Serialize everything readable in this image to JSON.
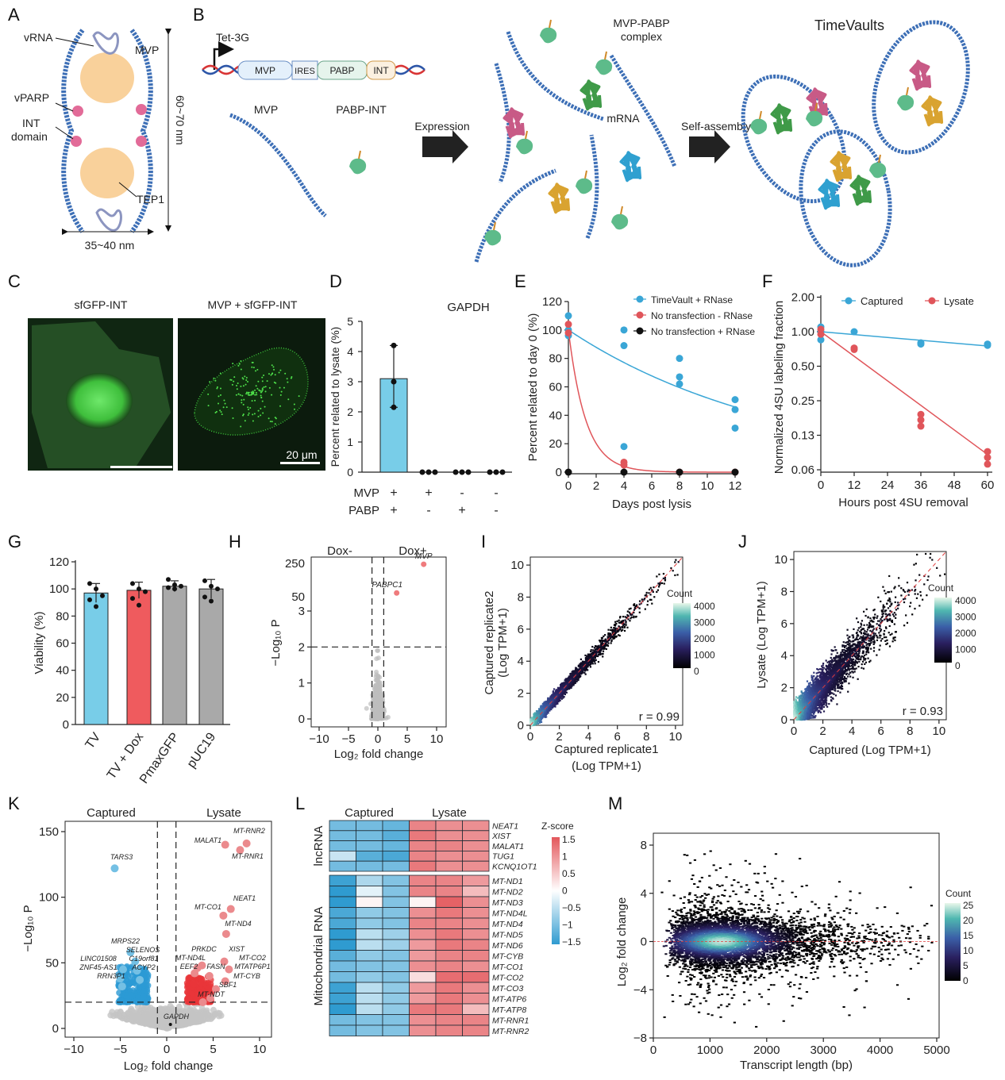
{
  "panel_labels": {
    "A": "A",
    "B": "B",
    "C": "C",
    "D": "D",
    "E": "E",
    "F": "F",
    "G": "G",
    "H": "H",
    "I": "I",
    "J": "J",
    "K": "K",
    "L": "L",
    "M": "M"
  },
  "diagram_a": {
    "vrna": "vRNA",
    "mvp": "MVP",
    "vparp": "vPARP",
    "int1": "INT",
    "int2": "domain",
    "tep1": "TEP1",
    "height": "60~70 nm",
    "width": "35~40 nm"
  },
  "diagram_b": {
    "promoter": "Tet-3G",
    "construct": [
      "MVP",
      "IRES",
      "PABP",
      "INT"
    ],
    "mvp": "MVP",
    "pabp_int": "PABP-INT",
    "expression": "Expression",
    "complex1": "MVP-PABP",
    "complex2": "complex",
    "mrna": "mRNA",
    "self_assembly": "Self-assembly",
    "timevaults": "TimeVaults"
  },
  "panel_c": {
    "left_title": "sfGFP-INT",
    "right_title": "MVP + sfGFP-INT",
    "scale_bar": "20 μm"
  },
  "colors": {
    "blue": "#3aa6d6",
    "red": "#e0555a",
    "gray": "#a9a9a9",
    "bar_cyan": "#78cde8",
    "bar_red": "#ef5b5e"
  },
  "chart_data": [
    {
      "panel": "D",
      "type": "bar",
      "title": "GAPDH",
      "ylabel": "Percent  related to lysate (%)",
      "ylim": [
        0,
        5
      ],
      "yticks": [
        "0",
        "1",
        "2",
        "3",
        "4",
        "5"
      ],
      "row_labels": [
        "MVP",
        "PABP"
      ],
      "conditions": [
        {
          "MVP": "+",
          "PABP": "+",
          "value": 3.1,
          "points": [
            4.2,
            3.0,
            2.15
          ]
        },
        {
          "MVP": "+",
          "PABP": "-",
          "value": 0,
          "points": [
            0,
            0,
            0
          ]
        },
        {
          "MVP": "-",
          "PABP": "+",
          "value": 0,
          "points": [
            0,
            0,
            0
          ]
        },
        {
          "MVP": "-",
          "PABP": "-",
          "value": 0,
          "points": [
            0,
            0,
            0
          ]
        }
      ]
    },
    {
      "panel": "E",
      "type": "scatter",
      "xlabel": "Days post lysis",
      "ylabel": "Percent related to day 0 (%)",
      "xlim": [
        0,
        12
      ],
      "ylim": [
        0,
        120
      ],
      "xticks": [
        "0",
        "2",
        "4",
        "6",
        "8",
        "10",
        "12"
      ],
      "yticks": [
        "0",
        "20",
        "40",
        "60",
        "80",
        "100",
        "120"
      ],
      "series": [
        {
          "name": "TimeVault + RNase",
          "color": "#3aa6d6",
          "points": [
            [
              0,
              110
            ],
            [
              0,
              100
            ],
            [
              0,
              96
            ],
            [
              4,
              100
            ],
            [
              4,
              89
            ],
            [
              4,
              18
            ],
            [
              8,
              80
            ],
            [
              8,
              67
            ],
            [
              8,
              62
            ],
            [
              12,
              51
            ],
            [
              12,
              44
            ],
            [
              12,
              31
            ]
          ],
          "fit_rate": 0.065
        },
        {
          "name": "No transfection - RNase",
          "color": "#e0555a",
          "points": [
            [
              0,
              104
            ],
            [
              0,
              98
            ],
            [
              4,
              7
            ],
            [
              4,
              5
            ],
            [
              8,
              0
            ],
            [
              12,
              0
            ]
          ],
          "fit_rate": 0.8
        },
        {
          "name": "No transfection + RNase",
          "color": "#111111",
          "points": [
            [
              0,
              0
            ],
            [
              4,
              0
            ],
            [
              8,
              0
            ],
            [
              12,
              0
            ]
          ]
        }
      ]
    },
    {
      "panel": "F",
      "type": "scatter",
      "xlabel": "Hours post 4SU removal",
      "ylabel": "Normalized 4SU labeling fraction",
      "xlim": [
        0,
        60
      ],
      "yscale": "log2",
      "ylim": [
        0.06,
        2.0
      ],
      "xticks": [
        "0",
        "12",
        "24",
        "36",
        "48",
        "60"
      ],
      "yticks": [
        "2.00",
        "1.00",
        "0.50",
        "0.25",
        "0.13",
        "0.06"
      ],
      "series": [
        {
          "name": "Captured",
          "color": "#3aa6d6",
          "points": [
            [
              0,
              1.1
            ],
            [
              0,
              1.0
            ],
            [
              0,
              0.85
            ],
            [
              12,
              1.0
            ],
            [
              36,
              0.8
            ],
            [
              36,
              0.78
            ],
            [
              60,
              0.78
            ],
            [
              60,
              0.76
            ]
          ],
          "fit": [
            1.0,
            0.75
          ]
        },
        {
          "name": "Lysate",
          "color": "#e0555a",
          "points": [
            [
              0,
              1.05
            ],
            [
              0,
              0.95
            ],
            [
              12,
              0.72
            ],
            [
              12,
              0.7
            ],
            [
              36,
              0.19
            ],
            [
              36,
              0.17
            ],
            [
              36,
              0.15
            ],
            [
              60,
              0.09
            ],
            [
              60,
              0.08
            ],
            [
              60,
              0.07
            ]
          ],
          "fit": [
            1.0,
            0.085
          ]
        }
      ]
    },
    {
      "panel": "G",
      "type": "bar",
      "ylabel": "Viability (%)",
      "ylim": [
        0,
        120
      ],
      "yticks": [
        "0",
        "20",
        "40",
        "60",
        "80",
        "100",
        "120"
      ],
      "categories": [
        "TV",
        "TV + Dox",
        "PmaxGFP",
        "pUC19"
      ],
      "values": [
        97,
        99,
        102,
        100
      ],
      "errors": [
        7,
        6,
        4,
        7
      ],
      "points": [
        [
          104,
          100,
          95,
          92,
          87
        ],
        [
          104,
          100,
          98,
          93,
          88
        ],
        [
          107,
          103,
          102,
          101,
          100
        ],
        [
          106,
          102,
          100,
          94,
          91
        ]
      ],
      "colors": [
        "#78cde8",
        "#ef5b5e",
        "#a9a9a9",
        "#a9a9a9"
      ]
    },
    {
      "panel": "H",
      "type": "scatter",
      "title_left": "Dox-",
      "title_right": "Dox+",
      "xlabel": "Log₂ fold change",
      "ylabel": "−Log₁₀ P",
      "xticks": [
        "−10",
        "−5",
        "0",
        "5",
        "10"
      ],
      "yticks_lower": [
        "0",
        "1",
        "2",
        "3"
      ],
      "yticks_upper": [
        "50",
        "250"
      ],
      "thresholds": {
        "log2fc": 1,
        "neglog10p": 2
      },
      "highlighted": [
        {
          "gene": "MVP",
          "log2fc": 7.8,
          "neglog10p": 240
        },
        {
          "gene": "PABPC1",
          "log2fc": 3.2,
          "neglog10p": 60
        }
      ]
    },
    {
      "panel": "I",
      "type": "scatter",
      "xlabel1": "Captured replicate1",
      "xlabel2": "(Log TPM+1)",
      "ylabel1": "Captured replicate2",
      "ylabel2": "(Log TPM+1)",
      "xlim": [
        0,
        10
      ],
      "ylim": [
        0,
        10
      ],
      "xticks": [
        "0",
        "2",
        "4",
        "6",
        "8",
        "10"
      ],
      "yticks": [
        "0",
        "2",
        "4",
        "6",
        "8",
        "10"
      ],
      "r": "r = 0.99",
      "colorbar_title": "Count",
      "colorbar_ticks": [
        "4000",
        "3000",
        "2000",
        "1000",
        "0"
      ]
    },
    {
      "panel": "J",
      "type": "scatter",
      "xlabel": "Captured (Log TPM+1)",
      "ylabel": "Lysate (Log TPM+1)",
      "xlim": [
        0,
        10
      ],
      "ylim": [
        0,
        10
      ],
      "xticks": [
        "0",
        "2",
        "4",
        "6",
        "8",
        "10"
      ],
      "yticks": [
        "0",
        "2",
        "4",
        "6",
        "8",
        "10"
      ],
      "r": "r = 0.93",
      "colorbar_title": "Count",
      "colorbar_ticks": [
        "4000",
        "3000",
        "2000",
        "1000",
        "0"
      ]
    },
    {
      "panel": "K",
      "type": "scatter",
      "title_left": "Captured",
      "title_right": "Lysate",
      "xlabel": "Log₂ fold change",
      "ylabel": "−Log₁₀ P",
      "xlim": [
        -10,
        10
      ],
      "ylim": [
        0,
        150
      ],
      "xticks": [
        "−10",
        "−5",
        "0",
        "5",
        "10"
      ],
      "yticks": [
        "0",
        "50",
        "100",
        "150"
      ],
      "thresholds": {
        "log2fc": 1,
        "neglog10p": 20
      },
      "labeled": [
        {
          "gene": "TARS3",
          "x": -5.6,
          "y": 122,
          "group": "captured"
        },
        {
          "gene": "MRPS22",
          "x": -3.9,
          "y": 58,
          "group": "captured"
        },
        {
          "gene": "SELENOS",
          "x": -3.4,
          "y": 51,
          "group": "captured"
        },
        {
          "gene": "LINC01508",
          "x": -4.7,
          "y": 45,
          "group": "captured"
        },
        {
          "gene": "C19orf81",
          "x": -3.2,
          "y": 44,
          "group": "captured"
        },
        {
          "gene": "ZNF45-AS1",
          "x": -5.0,
          "y": 38,
          "group": "captured"
        },
        {
          "gene": "ACYP2",
          "x": -2.9,
          "y": 37,
          "group": "captured"
        },
        {
          "gene": "RRN3P1",
          "x": -4.8,
          "y": 32,
          "group": "captured"
        },
        {
          "gene": "MALAT1",
          "x": 6.3,
          "y": 140,
          "group": "lysate"
        },
        {
          "gene": "MT-RNR2",
          "x": 8.6,
          "y": 141,
          "group": "lysate"
        },
        {
          "gene": "MT-RNR1",
          "x": 7.9,
          "y": 136,
          "group": "lysate"
        },
        {
          "gene": "NEAT1",
          "x": 6.9,
          "y": 91,
          "group": "lysate"
        },
        {
          "gene": "MT-CO1",
          "x": 6.1,
          "y": 86,
          "group": "lysate"
        },
        {
          "gene": "MT-ND4",
          "x": 6.4,
          "y": 72,
          "group": "lysate"
        },
        {
          "gene": "PRKDC",
          "x": 3.8,
          "y": 48,
          "group": "lysate"
        },
        {
          "gene": "XIST",
          "x": 6.2,
          "y": 51,
          "group": "lysate"
        },
        {
          "gene": "MT-ND4L",
          "x": 3.3,
          "y": 46,
          "group": "lysate"
        },
        {
          "gene": "MT-CO2",
          "x": 6.7,
          "y": 45,
          "group": "lysate"
        },
        {
          "gene": "EEF2",
          "x": 3.0,
          "y": 42,
          "group": "lysate"
        },
        {
          "gene": "FASN",
          "x": 4.6,
          "y": 40,
          "group": "lysate"
        },
        {
          "gene": "MTATP6P1",
          "x": 6.3,
          "y": 36,
          "group": "lysate"
        },
        {
          "gene": "MT-CYB",
          "x": 5.3,
          "y": 30,
          "group": "lysate"
        },
        {
          "gene": "SBF1",
          "x": 4.7,
          "y": 23,
          "group": "lysate"
        },
        {
          "gene": "MT-NDT",
          "x": 3.9,
          "y": 20,
          "group": "lysate"
        },
        {
          "gene": "GAPDH",
          "x": 0.4,
          "y": 3,
          "group": "ns"
        }
      ]
    },
    {
      "panel": "L",
      "type": "heatmap",
      "col_groups": [
        "Captured",
        "Lysate"
      ],
      "row_groups": [
        "lncRNA",
        "Mitochondrial RNA"
      ],
      "colorbar_title": "Z-score",
      "colorbar_ticks": [
        "1.5",
        "1",
        "0.5",
        "0",
        "−0.5",
        "−1",
        "−1.5"
      ],
      "rows": [
        "NEAT1",
        "XIST",
        "MALAT1",
        "TUG1",
        "KCNQ1OT1",
        "MT-ND1",
        "MT-ND2",
        "MT-ND3",
        "MT-ND4L",
        "MT-ND4",
        "MT-ND5",
        "MT-ND6",
        "MT-CYB",
        "MT-CO1",
        "MT-CO2",
        "MT-CO3",
        "MT-ATP6",
        "MT-ATP8",
        "MT-RNR1",
        "MT-RNR2"
      ],
      "values": [
        [
          -1.0,
          -1.0,
          -1.1,
          1.1,
          1.0,
          1.0
        ],
        [
          -1.0,
          -1.0,
          -1.2,
          1.2,
          1.0,
          1.0
        ],
        [
          -1.0,
          -1.0,
          -1.1,
          1.1,
          1.1,
          1.0
        ],
        [
          -0.4,
          -1.2,
          -1.3,
          1.1,
          1.0,
          1.0
        ],
        [
          -1.0,
          -1.0,
          -1.0,
          1.2,
          1.0,
          1.0
        ],
        [
          -1.4,
          -0.6,
          -0.9,
          1.1,
          1.1,
          0.9
        ],
        [
          -1.5,
          -0.2,
          -0.9,
          1.1,
          1.1,
          0.6
        ],
        [
          -1.5,
          0.1,
          -0.9,
          0.1,
          1.4,
          1.0
        ],
        [
          -1.3,
          -0.8,
          -0.9,
          1.0,
          1.2,
          1.0
        ],
        [
          -1.3,
          -0.8,
          -0.9,
          1.1,
          1.1,
          1.0
        ],
        [
          -1.5,
          -0.5,
          -0.7,
          1.0,
          1.2,
          1.0
        ],
        [
          -1.5,
          -0.5,
          -0.7,
          0.9,
          1.2,
          1.1
        ],
        [
          -1.2,
          -0.8,
          -0.9,
          0.9,
          1.1,
          1.1
        ],
        [
          -1.0,
          -0.9,
          -0.9,
          1.0,
          1.1,
          1.0
        ],
        [
          -1.0,
          -0.8,
          -0.9,
          0.3,
          1.3,
          1.3
        ],
        [
          -1.4,
          -0.5,
          -0.8,
          0.9,
          1.2,
          1.0
        ],
        [
          -1.4,
          -0.5,
          -0.8,
          0.9,
          1.2,
          1.0
        ],
        [
          -1.5,
          -0.5,
          -0.8,
          1.2,
          1.2,
          0.6
        ],
        [
          -1.0,
          -0.9,
          -0.9,
          1.0,
          1.1,
          1.1
        ],
        [
          -1.0,
          -0.9,
          -0.9,
          1.0,
          1.1,
          1.1
        ]
      ]
    },
    {
      "panel": "M",
      "type": "scatter",
      "xlabel": "Transcript length (bp)",
      "ylabel": "Log₂ fold change",
      "xlim": [
        0,
        5000
      ],
      "ylim": [
        -8,
        8
      ],
      "xticks": [
        "0",
        "1000",
        "2000",
        "3000",
        "4000",
        "5000"
      ],
      "yticks": [
        "8",
        "4",
        "0",
        "−4",
        "−8"
      ],
      "colorbar_title": "Count",
      "colorbar_ticks": [
        "25",
        "20",
        "15",
        "10",
        "5",
        "0"
      ]
    }
  ]
}
